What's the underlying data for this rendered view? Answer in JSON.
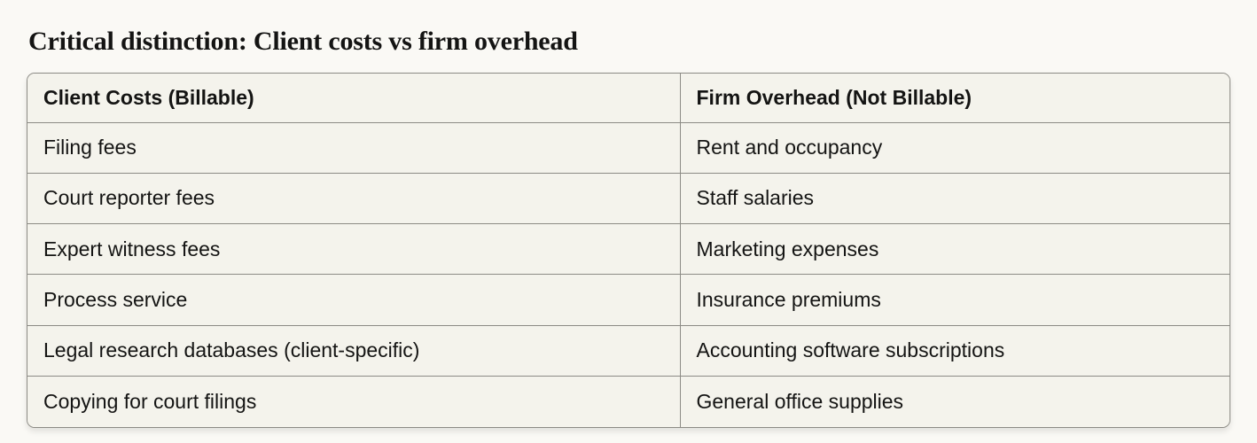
{
  "page": {
    "title": "Critical distinction: Client costs vs firm overhead"
  },
  "table": {
    "columns": [
      {
        "header": "Client Costs (Billable)"
      },
      {
        "header": "Firm Overhead (Not Billable)"
      }
    ],
    "rows": [
      [
        "Filing fees",
        "Rent and occupancy"
      ],
      [
        "Court reporter fees",
        "Staff salaries"
      ],
      [
        "Expert witness fees",
        "Marketing expenses"
      ],
      [
        "Process service",
        "Insurance premiums"
      ],
      [
        "Legal research databases (client-specific)",
        "Accounting software subscriptions"
      ],
      [
        "Copying for court filings",
        "General office supplies"
      ]
    ]
  },
  "colors": {
    "page_background": "#FAF9F5",
    "cell_background": "#F4F3EC",
    "border": "#8C8B85",
    "text": "#141413"
  }
}
